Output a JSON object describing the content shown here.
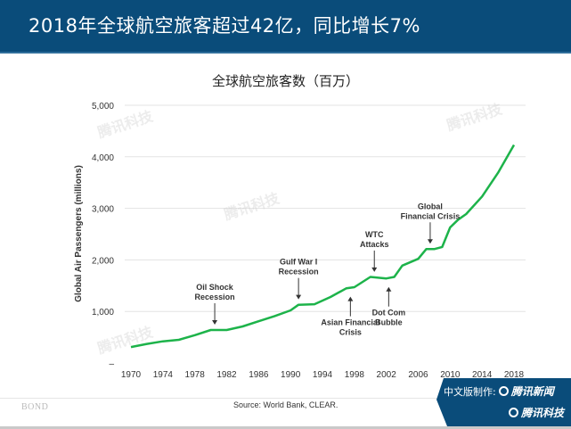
{
  "header": {
    "title": "2018年全球航空旅客超过42亿，同比增长7%"
  },
  "chart_data": {
    "type": "line",
    "title": "全球航空旅客数（百万）",
    "xlabel": "",
    "ylabel": "Global Air Passengers (millions)",
    "ylim": [
      0,
      5000
    ],
    "xlim": [
      1970,
      2018
    ],
    "grid": true,
    "y_ticks": [
      "–",
      "1,000",
      "2,000",
      "3,000",
      "4,000",
      "5,000"
    ],
    "y_tick_values": [
      0,
      1000,
      2000,
      3000,
      4000,
      5000
    ],
    "x_ticks": [
      "1970",
      "1974",
      "1978",
      "1982",
      "1986",
      "1990",
      "1994",
      "1998",
      "2002",
      "2006",
      "2010",
      "2014",
      "2018"
    ],
    "line_color": "#1db34a",
    "series": [
      {
        "name": "Global Air Passengers",
        "x": [
          1970,
          1972,
          1974,
          1976,
          1978,
          1980,
          1982,
          1984,
          1986,
          1988,
          1990,
          1991,
          1993,
          1995,
          1997,
          1998,
          2000,
          2002,
          2003,
          2004,
          2006,
          2007,
          2008,
          2009,
          2010,
          2011,
          2012,
          2014,
          2016,
          2018
        ],
        "values": [
          310,
          370,
          420,
          450,
          540,
          640,
          640,
          710,
          810,
          910,
          1020,
          1130,
          1140,
          1280,
          1450,
          1470,
          1670,
          1640,
          1670,
          1890,
          2020,
          2210,
          2210,
          2250,
          2630,
          2780,
          2890,
          3230,
          3690,
          4230
        ]
      }
    ],
    "annotations": [
      {
        "text": [
          "Oil Shock",
          "Recession"
        ],
        "year": 1980.5,
        "direction": "down"
      },
      {
        "text": [
          "Gulf War I",
          "Recession"
        ],
        "year": 1991,
        "direction": "down"
      },
      {
        "text": [
          "Asian Financial",
          "Crisis"
        ],
        "year": 1997.5,
        "direction": "up"
      },
      {
        "text": [
          "WTC",
          "Attacks"
        ],
        "year": 2000.5,
        "direction": "down"
      },
      {
        "text": [
          "Dot Com",
          "Bubble"
        ],
        "year": 2002.3,
        "direction": "up"
      },
      {
        "text": [
          "Global",
          "Financial Crisis"
        ],
        "year": 2007.5,
        "direction": "down"
      }
    ]
  },
  "footer": {
    "source": "Source: World Bank, CLEAR.",
    "brand": "BOND",
    "badge_prefix": "中文版制作:",
    "badge_brand1": "腾讯新闻",
    "badge_brand2": "腾讯科技"
  },
  "watermark": "腾讯科技"
}
